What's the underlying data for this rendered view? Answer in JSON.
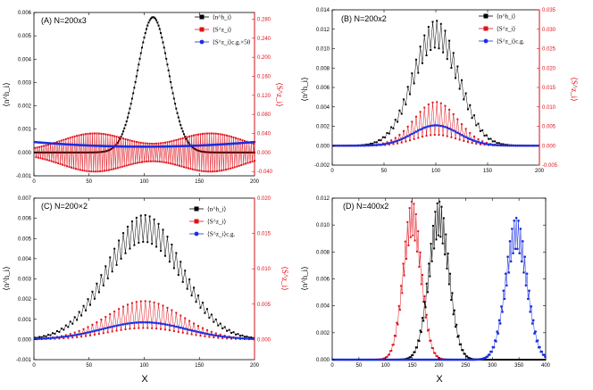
{
  "chart_data": [
    {
      "panel": "A",
      "type": "line",
      "title": "(A) N=200x3",
      "xlabel": "X",
      "ylabel": "⟨n^h_i⟩",
      "y2label": "⟨S^z_i⟩",
      "xlim": [
        0,
        200
      ],
      "xticks": [
        0,
        50,
        100,
        150,
        200
      ],
      "ylim": [
        -0.001,
        0.006
      ],
      "yticks": [
        -0.001,
        0.0,
        0.001,
        0.002,
        0.003,
        0.004,
        0.005,
        0.006
      ],
      "yticklabels": [
        "-0.001",
        "0.000",
        "0.001",
        "0.002",
        "0.003",
        "0.004",
        "0.005",
        "0.006"
      ],
      "y2lim": [
        -0.049,
        0.294
      ],
      "y2ticks": [
        -0.04,
        0.0,
        0.04,
        0.08,
        0.12,
        0.16,
        0.2,
        0.24,
        0.28
      ],
      "y2ticklabels": [
        "-0.040",
        "0.000",
        "0.040",
        "0.080",
        "0.120",
        "0.160",
        "0.200",
        "0.240",
        "0.280"
      ],
      "legend_position": "top-right",
      "series": [
        {
          "name": "⟨n^h_i⟩",
          "color": "#000000",
          "marker": "square",
          "kind": "gauss",
          "axis": "left",
          "n": 200,
          "x0": 1,
          "dx": 1,
          "amp": 0.0058,
          "center": 108,
          "sigma": 14,
          "offset": 0.0
        },
        {
          "name": "⟨S^z_i⟩",
          "color": "#e0101a",
          "marker": "square",
          "kind": "stagger-envelope",
          "axis": "right",
          "n": 200,
          "x0": 1,
          "dx": 1,
          "peaks": [
            {
              "center": 55,
              "sigma": 30,
              "amp": 0.038
            },
            {
              "center": 160,
              "sigma": 30,
              "amp": 0.038
            }
          ],
          "floor": 0.002,
          "baseline": 0.0
        },
        {
          "name": "⟨S^z_i⟩c.g.×50",
          "color": "#1a2ee0",
          "marker": "circle",
          "kind": "bowl",
          "axis": "left",
          "n": 200,
          "x0": 1,
          "dx": 1,
          "center": 100,
          "min": 0.00025,
          "edge": 0.00045
        }
      ]
    },
    {
      "panel": "B",
      "type": "line",
      "title": "(B) N=200x2",
      "xlabel": "X",
      "ylabel": "⟨n^h_i⟩",
      "y2label": "⟨S^z_i⟩",
      "xlim": [
        0,
        200
      ],
      "xticks": [
        0,
        50,
        100,
        150,
        200
      ],
      "ylim": [
        -0.002,
        0.014
      ],
      "yticks": [
        -0.002,
        0.0,
        0.002,
        0.004,
        0.006,
        0.008,
        0.01,
        0.012,
        0.014
      ],
      "yticklabels": [
        "-0.002",
        "0.000",
        "0.002",
        "0.004",
        "0.006",
        "0.008",
        "0.010",
        "0.012",
        "0.014"
      ],
      "y2lim": [
        -0.005,
        0.035
      ],
      "y2ticks": [
        -0.005,
        0.0,
        0.005,
        0.01,
        0.015,
        0.02,
        0.025,
        0.03,
        0.035
      ],
      "y2ticklabels": [
        "-0.005",
        "0.000",
        "0.005",
        "0.010",
        "0.015",
        "0.020",
        "0.025",
        "0.030",
        "0.035"
      ],
      "legend_position": "top-right",
      "series": [
        {
          "name": "⟨n^h_i⟩",
          "color": "#000000",
          "marker": "square",
          "kind": "stagger-gauss",
          "axis": "left",
          "n": 100,
          "x0": 1,
          "dx": 2,
          "amp": 0.0115,
          "center": 100,
          "sigma": 22,
          "ripple": 0.12
        },
        {
          "name": "⟨S^z_i⟩",
          "color": "#e0101a",
          "marker": "square",
          "kind": "stagger-pos",
          "axis": "left",
          "n": 100,
          "x0": 1,
          "dx": 2,
          "amp": 0.0045,
          "center": 100,
          "sigma": 21,
          "low": 0.25
        },
        {
          "name": "⟨S^z_i⟩c.g.",
          "color": "#1a2ee0",
          "marker": "circle",
          "kind": "gauss",
          "axis": "left",
          "n": 100,
          "x0": 1,
          "dx": 2,
          "amp": 0.0021,
          "center": 100,
          "sigma": 22,
          "offset": 0.0
        }
      ]
    },
    {
      "panel": "C",
      "type": "line",
      "title": "(C) N=200×2",
      "xlabel": "X",
      "ylabel": "⟨n^h_i⟩",
      "y2label": "⟨S^z_i⟩",
      "xlim": [
        0,
        200
      ],
      "xticks": [
        0,
        50,
        100,
        150,
        200
      ],
      "ylim": [
        -0.001,
        0.007
      ],
      "yticks": [
        -0.001,
        0.0,
        0.001,
        0.002,
        0.003,
        0.004,
        0.005,
        0.006,
        0.007
      ],
      "yticklabels": [
        "-0.001",
        "0.000",
        "0.001",
        "0.002",
        "0.003",
        "0.004",
        "0.005",
        "0.006",
        "0.007"
      ],
      "y2lim": [
        -0.00286,
        0.02
      ],
      "y2ticks": [
        0.0,
        0.005,
        0.01,
        0.015,
        0.02
      ],
      "y2ticklabels": [
        "0.000",
        "0.005",
        "0.010",
        "0.015",
        "0.020"
      ],
      "legend_position": "top-right",
      "series": [
        {
          "name": "⟨n^h_i⟩",
          "color": "#000000",
          "marker": "square",
          "kind": "stagger-gauss",
          "axis": "left",
          "n": 100,
          "x0": 1,
          "dx": 2,
          "amp": 0.0055,
          "center": 100,
          "sigma": 34,
          "ripple": 0.12
        },
        {
          "name": "⟨S^z_i⟩",
          "color": "#e0101a",
          "marker": "square",
          "kind": "stagger-pos",
          "axis": "left",
          "n": 100,
          "x0": 1,
          "dx": 2,
          "amp": 0.0019,
          "center": 100,
          "sigma": 34,
          "low": 0.3
        },
        {
          "name": "⟨S^z_i⟩c.g.",
          "color": "#1a2ee0",
          "marker": "circle",
          "kind": "gauss",
          "axis": "left",
          "n": 100,
          "x0": 1,
          "dx": 2,
          "amp": 0.00085,
          "center": 100,
          "sigma": 38,
          "offset": 0.0
        }
      ]
    },
    {
      "panel": "D",
      "type": "line",
      "title": "(D) N=400x2",
      "xlabel": "X",
      "ylabel": "⟨n^h_i⟩",
      "xlim": [
        0,
        400
      ],
      "xticks": [
        0,
        50,
        100,
        150,
        200,
        250,
        300,
        350,
        400
      ],
      "ylim": [
        0.0,
        0.012
      ],
      "yticks": [
        0.0,
        0.002,
        0.004,
        0.006,
        0.008,
        0.01,
        0.012
      ],
      "yticklabels": [
        "0.000",
        "0.002",
        "0.004",
        "0.006",
        "0.008",
        "0.010",
        "0.012"
      ],
      "legend_position": "none",
      "series": [
        {
          "name": "red",
          "color": "#e0101a",
          "marker": "square",
          "kind": "stagger-gauss",
          "axis": "left",
          "n": 200,
          "x0": 1,
          "dx": 2,
          "amp": 0.0105,
          "center": 150,
          "sigma": 17,
          "ripple": 0.12
        },
        {
          "name": "black",
          "color": "#000000",
          "marker": "square",
          "kind": "stagger-gauss",
          "axis": "left",
          "n": 200,
          "x0": 1,
          "dx": 2,
          "amp": 0.0105,
          "center": 200,
          "sigma": 19,
          "ripple": 0.12
        },
        {
          "name": "blue",
          "color": "#1a2ee0",
          "marker": "circle",
          "kind": "stagger-gauss",
          "axis": "left",
          "n": 200,
          "x0": 1,
          "dx": 2,
          "amp": 0.0094,
          "center": 345,
          "sigma": 20,
          "ripple": 0.12
        }
      ]
    }
  ],
  "colors": {
    "black": "#000000",
    "red": "#e0101a",
    "blue": "#1a2ee0"
  }
}
